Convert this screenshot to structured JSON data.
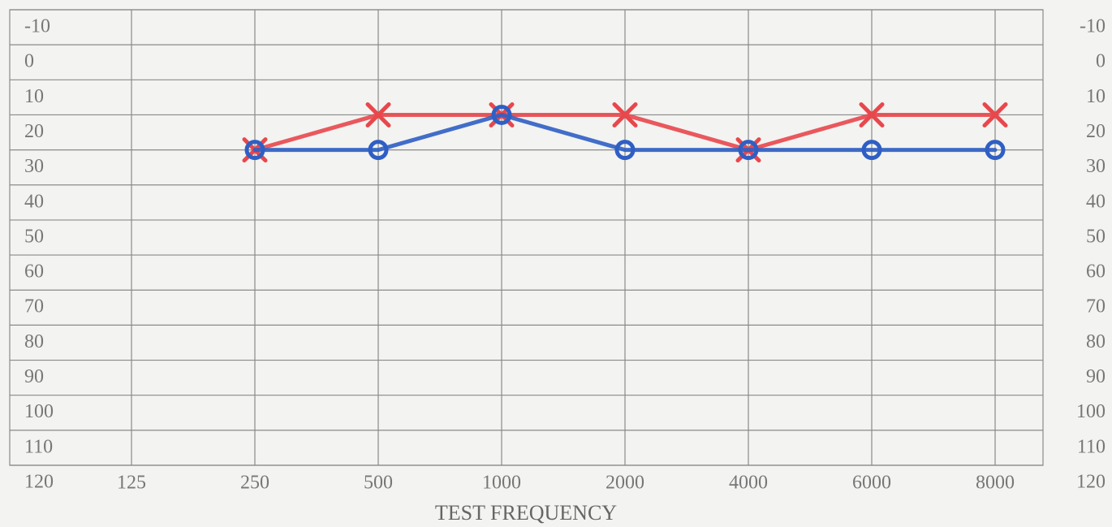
{
  "chart_data": {
    "type": "line",
    "x_label": "TEST FREQUENCY",
    "categories": [
      "125",
      "250",
      "500",
      "1000",
      "2000",
      "4000",
      "6000",
      "8000"
    ],
    "series": [
      {
        "color": "#e8474c",
        "marker": "x",
        "values": [
          null,
          30,
          20,
          20,
          20,
          30,
          20,
          20
        ]
      },
      {
        "color": "#2f5fc4",
        "marker": "o",
        "values": [
          null,
          30,
          30,
          20,
          30,
          30,
          30,
          30
        ]
      }
    ],
    "ylim": [
      -10,
      120
    ],
    "y_inverted": true,
    "yticks": [
      -10,
      0,
      10,
      20,
      30,
      40,
      50,
      60,
      70,
      80,
      90,
      100,
      110,
      120
    ],
    "grid": true
  }
}
